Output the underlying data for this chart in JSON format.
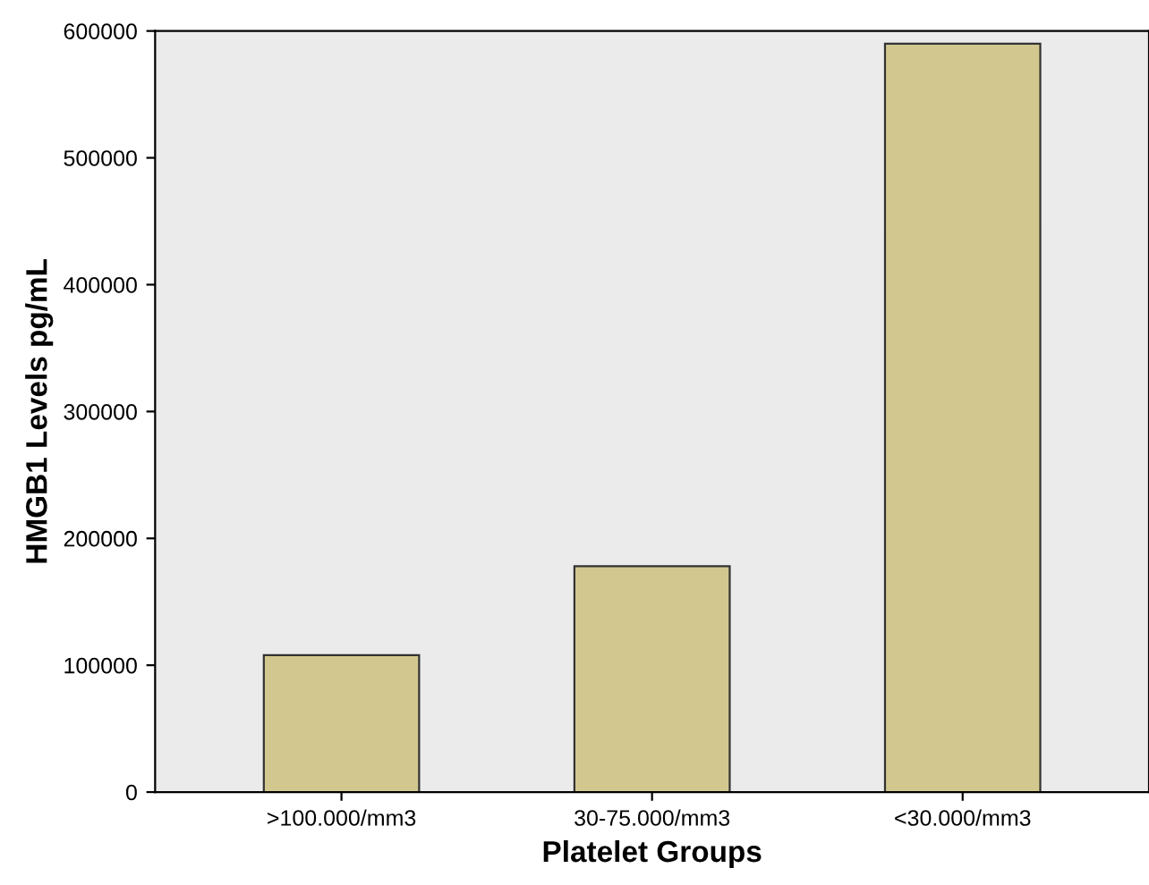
{
  "chart_data": {
    "type": "bar",
    "xlabel": "Platelet Groups",
    "ylabel": "HMGB1 Levels pg/mL",
    "categories": [
      ">100.000/mm3",
      "30-75.000/mm3",
      "<30.000/mm3"
    ],
    "values": [
      108000,
      178000,
      590000
    ],
    "color": "#d2c88f",
    "ylim": [
      0,
      600000
    ],
    "yticks": [
      0,
      100000,
      200000,
      300000,
      400000,
      500000,
      600000
    ],
    "grid": false
  }
}
